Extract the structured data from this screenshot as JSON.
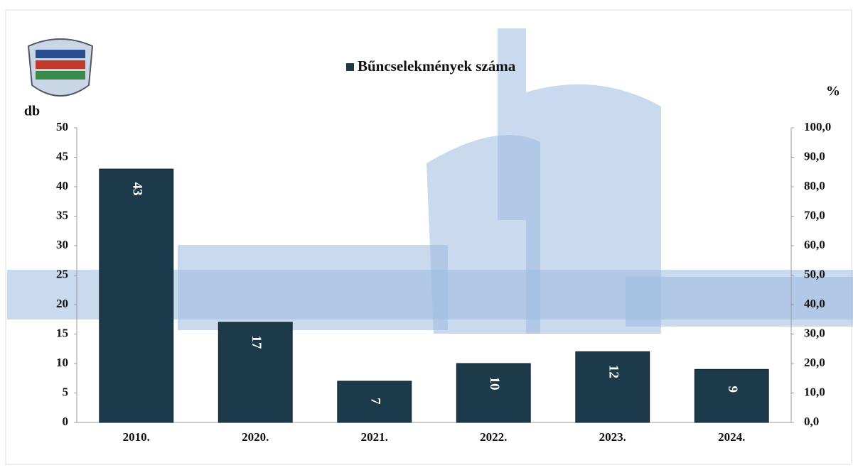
{
  "chart_data": {
    "type": "bar",
    "y_label": "db",
    "y2_label": "%",
    "categories": [
      "2010.",
      "2020.",
      "2021.",
      "2022.",
      "2023.",
      "2024."
    ],
    "series": [
      {
        "name": "Bűncselekmények száma",
        "color": "#1d3a4b",
        "values": [
          43,
          17,
          7,
          10,
          12,
          9
        ]
      }
    ],
    "ylim": [
      0,
      50
    ],
    "yticks": [
      0,
      5,
      10,
      15,
      20,
      25,
      30,
      35,
      40,
      45,
      50
    ],
    "y2lim": [
      0,
      100
    ],
    "y2ticks": [
      {
        "value": 0,
        "label": "0,0"
      },
      {
        "value": 10,
        "label": "10,0"
      },
      {
        "value": 20,
        "label": "20,0"
      },
      {
        "value": 30,
        "label": "30,0"
      },
      {
        "value": 40,
        "label": "40,0"
      },
      {
        "value": 50,
        "label": "50,0"
      },
      {
        "value": 60,
        "label": "60,0"
      },
      {
        "value": 70,
        "label": "70,0"
      },
      {
        "value": 80,
        "label": "80,0"
      },
      {
        "value": 90,
        "label": "90,0"
      },
      {
        "value": 100,
        "label": "100,0"
      }
    ],
    "legend": "top",
    "grid": false
  }
}
